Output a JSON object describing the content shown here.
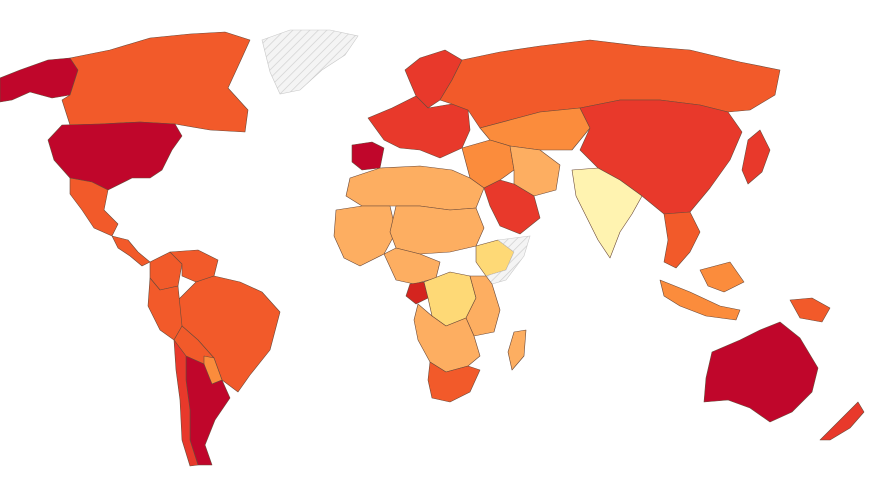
{
  "map": {
    "type": "choropleth-world",
    "legend": null,
    "title": "",
    "color_scale": {
      "c1": "#fff3b0",
      "c2": "#fed976",
      "c3": "#fdae61",
      "c4": "#fb8c3c",
      "c5": "#f25a2a",
      "c6": "#e8392b",
      "c7": "#d4241f",
      "c8": "#c0062b",
      "nodata": "hatched"
    },
    "regions": [
      {
        "name": "alaska",
        "cls": "c8"
      },
      {
        "name": "canada",
        "cls": "c5"
      },
      {
        "name": "usa",
        "cls": "c8"
      },
      {
        "name": "greenland",
        "cls": "nodata"
      },
      {
        "name": "mexico",
        "cls": "c5"
      },
      {
        "name": "central-america",
        "cls": "c5"
      },
      {
        "name": "colombia",
        "cls": "c5"
      },
      {
        "name": "venezuela",
        "cls": "c5"
      },
      {
        "name": "brazil",
        "cls": "c5"
      },
      {
        "name": "peru",
        "cls": "c5"
      },
      {
        "name": "bolivia",
        "cls": "c5"
      },
      {
        "name": "paraguay",
        "cls": "c4"
      },
      {
        "name": "argentina",
        "cls": "c8"
      },
      {
        "name": "chile",
        "cls": "c6"
      },
      {
        "name": "europe",
        "cls": "c6"
      },
      {
        "name": "iberia",
        "cls": "c8"
      },
      {
        "name": "scandinavia",
        "cls": "c6"
      },
      {
        "name": "russia",
        "cls": "c5"
      },
      {
        "name": "china",
        "cls": "c6"
      },
      {
        "name": "central-asia",
        "cls": "c4"
      },
      {
        "name": "middle-east",
        "cls": "c4"
      },
      {
        "name": "saudi-arabia",
        "cls": "c6"
      },
      {
        "name": "iran",
        "cls": "c3"
      },
      {
        "name": "india",
        "cls": "c1"
      },
      {
        "name": "southeast-asia",
        "cls": "c5"
      },
      {
        "name": "japan",
        "cls": "c6"
      },
      {
        "name": "indonesia",
        "cls": "c4"
      },
      {
        "name": "papua",
        "cls": "c5"
      },
      {
        "name": "australia",
        "cls": "c8"
      },
      {
        "name": "new-zealand",
        "cls": "c6"
      },
      {
        "name": "north-africa",
        "cls": "c3"
      },
      {
        "name": "west-africa",
        "cls": "c3"
      },
      {
        "name": "sudan-chad",
        "cls": "c3"
      },
      {
        "name": "ethiopia",
        "cls": "c2"
      },
      {
        "name": "somalia",
        "cls": "nodata"
      },
      {
        "name": "central-africa",
        "cls": "c3"
      },
      {
        "name": "drc",
        "cls": "c2"
      },
      {
        "name": "gabon",
        "cls": "c7"
      },
      {
        "name": "east-africa",
        "cls": "c3"
      },
      {
        "name": "southern-africa",
        "cls": "c3"
      },
      {
        "name": "south-africa",
        "cls": "c5"
      },
      {
        "name": "madagascar",
        "cls": "c3"
      }
    ]
  }
}
